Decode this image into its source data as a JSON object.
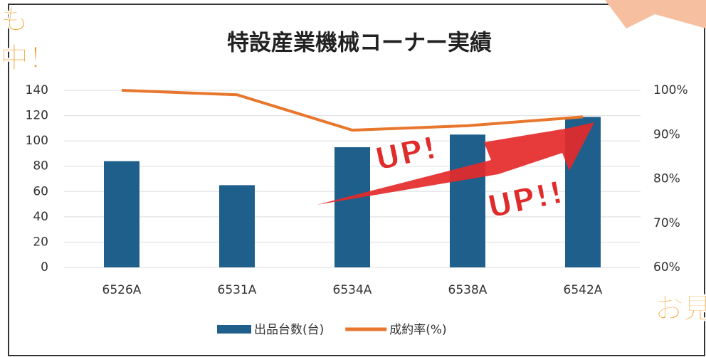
{
  "chart_data": {
    "type": "bar-line",
    "title": "特設産業機械コーナー実績",
    "categories": [
      "6526A",
      "6531A",
      "6534A",
      "6538A",
      "6542A"
    ],
    "series": [
      {
        "name": "出品台数(台)",
        "type": "bar",
        "color": "#1f5f8b",
        "values": [
          84,
          65,
          95,
          105,
          119
        ]
      },
      {
        "name": "成約率(%)",
        "type": "line",
        "color": "#e8762d",
        "axis": "y2",
        "values": [
          100,
          99,
          91,
          92,
          94
        ]
      }
    ],
    "ylim": [
      0,
      140
    ],
    "yticks": [
      0,
      20,
      40,
      60,
      80,
      100,
      120,
      140
    ],
    "y2lim": [
      60,
      100
    ],
    "y2ticks": [
      {
        "value": 60,
        "label": "60%"
      },
      {
        "value": 70,
        "label": "70%"
      },
      {
        "value": 80,
        "label": "80%"
      },
      {
        "value": 90,
        "label": "90%"
      },
      {
        "value": 100,
        "label": "100%"
      }
    ],
    "grid": true,
    "legend": "bottom",
    "annotations": [
      "UP!",
      "UP!!"
    ],
    "decorations": [
      "も",
      "中！",
      "お見"
    ]
  }
}
